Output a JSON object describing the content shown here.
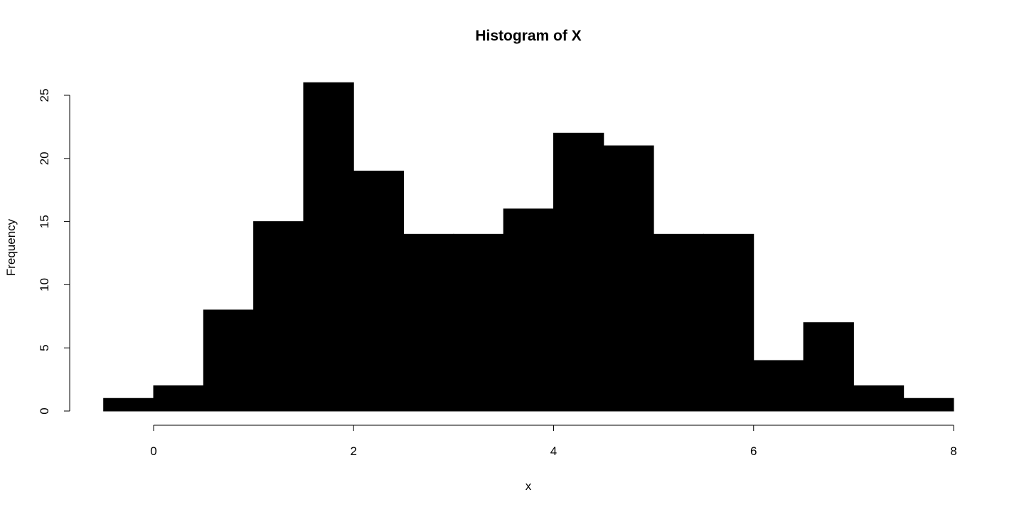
{
  "chart_data": {
    "type": "bar",
    "title": "Histogram of X",
    "xlabel": "x",
    "ylabel": "Frequency",
    "bins": [
      {
        "start": -0.5,
        "end": 0.0,
        "count": 1
      },
      {
        "start": 0.0,
        "end": 0.5,
        "count": 2
      },
      {
        "start": 0.5,
        "end": 1.0,
        "count": 8
      },
      {
        "start": 1.0,
        "end": 1.5,
        "count": 15
      },
      {
        "start": 1.5,
        "end": 2.0,
        "count": 26
      },
      {
        "start": 2.0,
        "end": 2.5,
        "count": 19
      },
      {
        "start": 2.5,
        "end": 3.0,
        "count": 14
      },
      {
        "start": 3.0,
        "end": 3.5,
        "count": 14
      },
      {
        "start": 3.5,
        "end": 4.0,
        "count": 16
      },
      {
        "start": 4.0,
        "end": 4.5,
        "count": 22
      },
      {
        "start": 4.5,
        "end": 5.0,
        "count": 21
      },
      {
        "start": 5.0,
        "end": 5.5,
        "count": 14
      },
      {
        "start": 5.5,
        "end": 6.0,
        "count": 14
      },
      {
        "start": 6.0,
        "end": 6.5,
        "count": 4
      },
      {
        "start": 6.5,
        "end": 7.0,
        "count": 7
      },
      {
        "start": 7.0,
        "end": 7.5,
        "count": 2
      },
      {
        "start": 7.5,
        "end": 8.0,
        "count": 1
      }
    ],
    "xticks": [
      0,
      2,
      4,
      6,
      8
    ],
    "yticks": [
      0,
      5,
      10,
      15,
      20,
      25
    ],
    "xlim": [
      -0.5,
      8
    ],
    "ylim": [
      0,
      26
    ],
    "grid": false,
    "legend": "none",
    "bar_color": "#000000"
  }
}
